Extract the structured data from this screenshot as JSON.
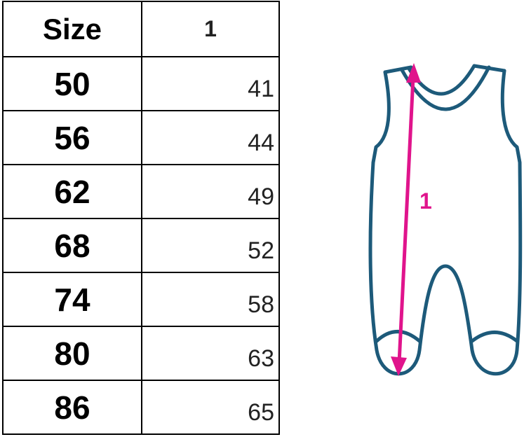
{
  "table": {
    "headers": [
      "Size",
      "1"
    ],
    "rows": [
      {
        "size": "50",
        "value": "41"
      },
      {
        "size": "56",
        "value": "44"
      },
      {
        "size": "62",
        "value": "49"
      },
      {
        "size": "68",
        "value": "52"
      },
      {
        "size": "74",
        "value": "58"
      },
      {
        "size": "80",
        "value": "63"
      },
      {
        "size": "86",
        "value": "65"
      }
    ]
  },
  "illustration": {
    "measure_label": "1",
    "outline_color": "#1d5a7a",
    "arrow_color": "#e0148c"
  }
}
